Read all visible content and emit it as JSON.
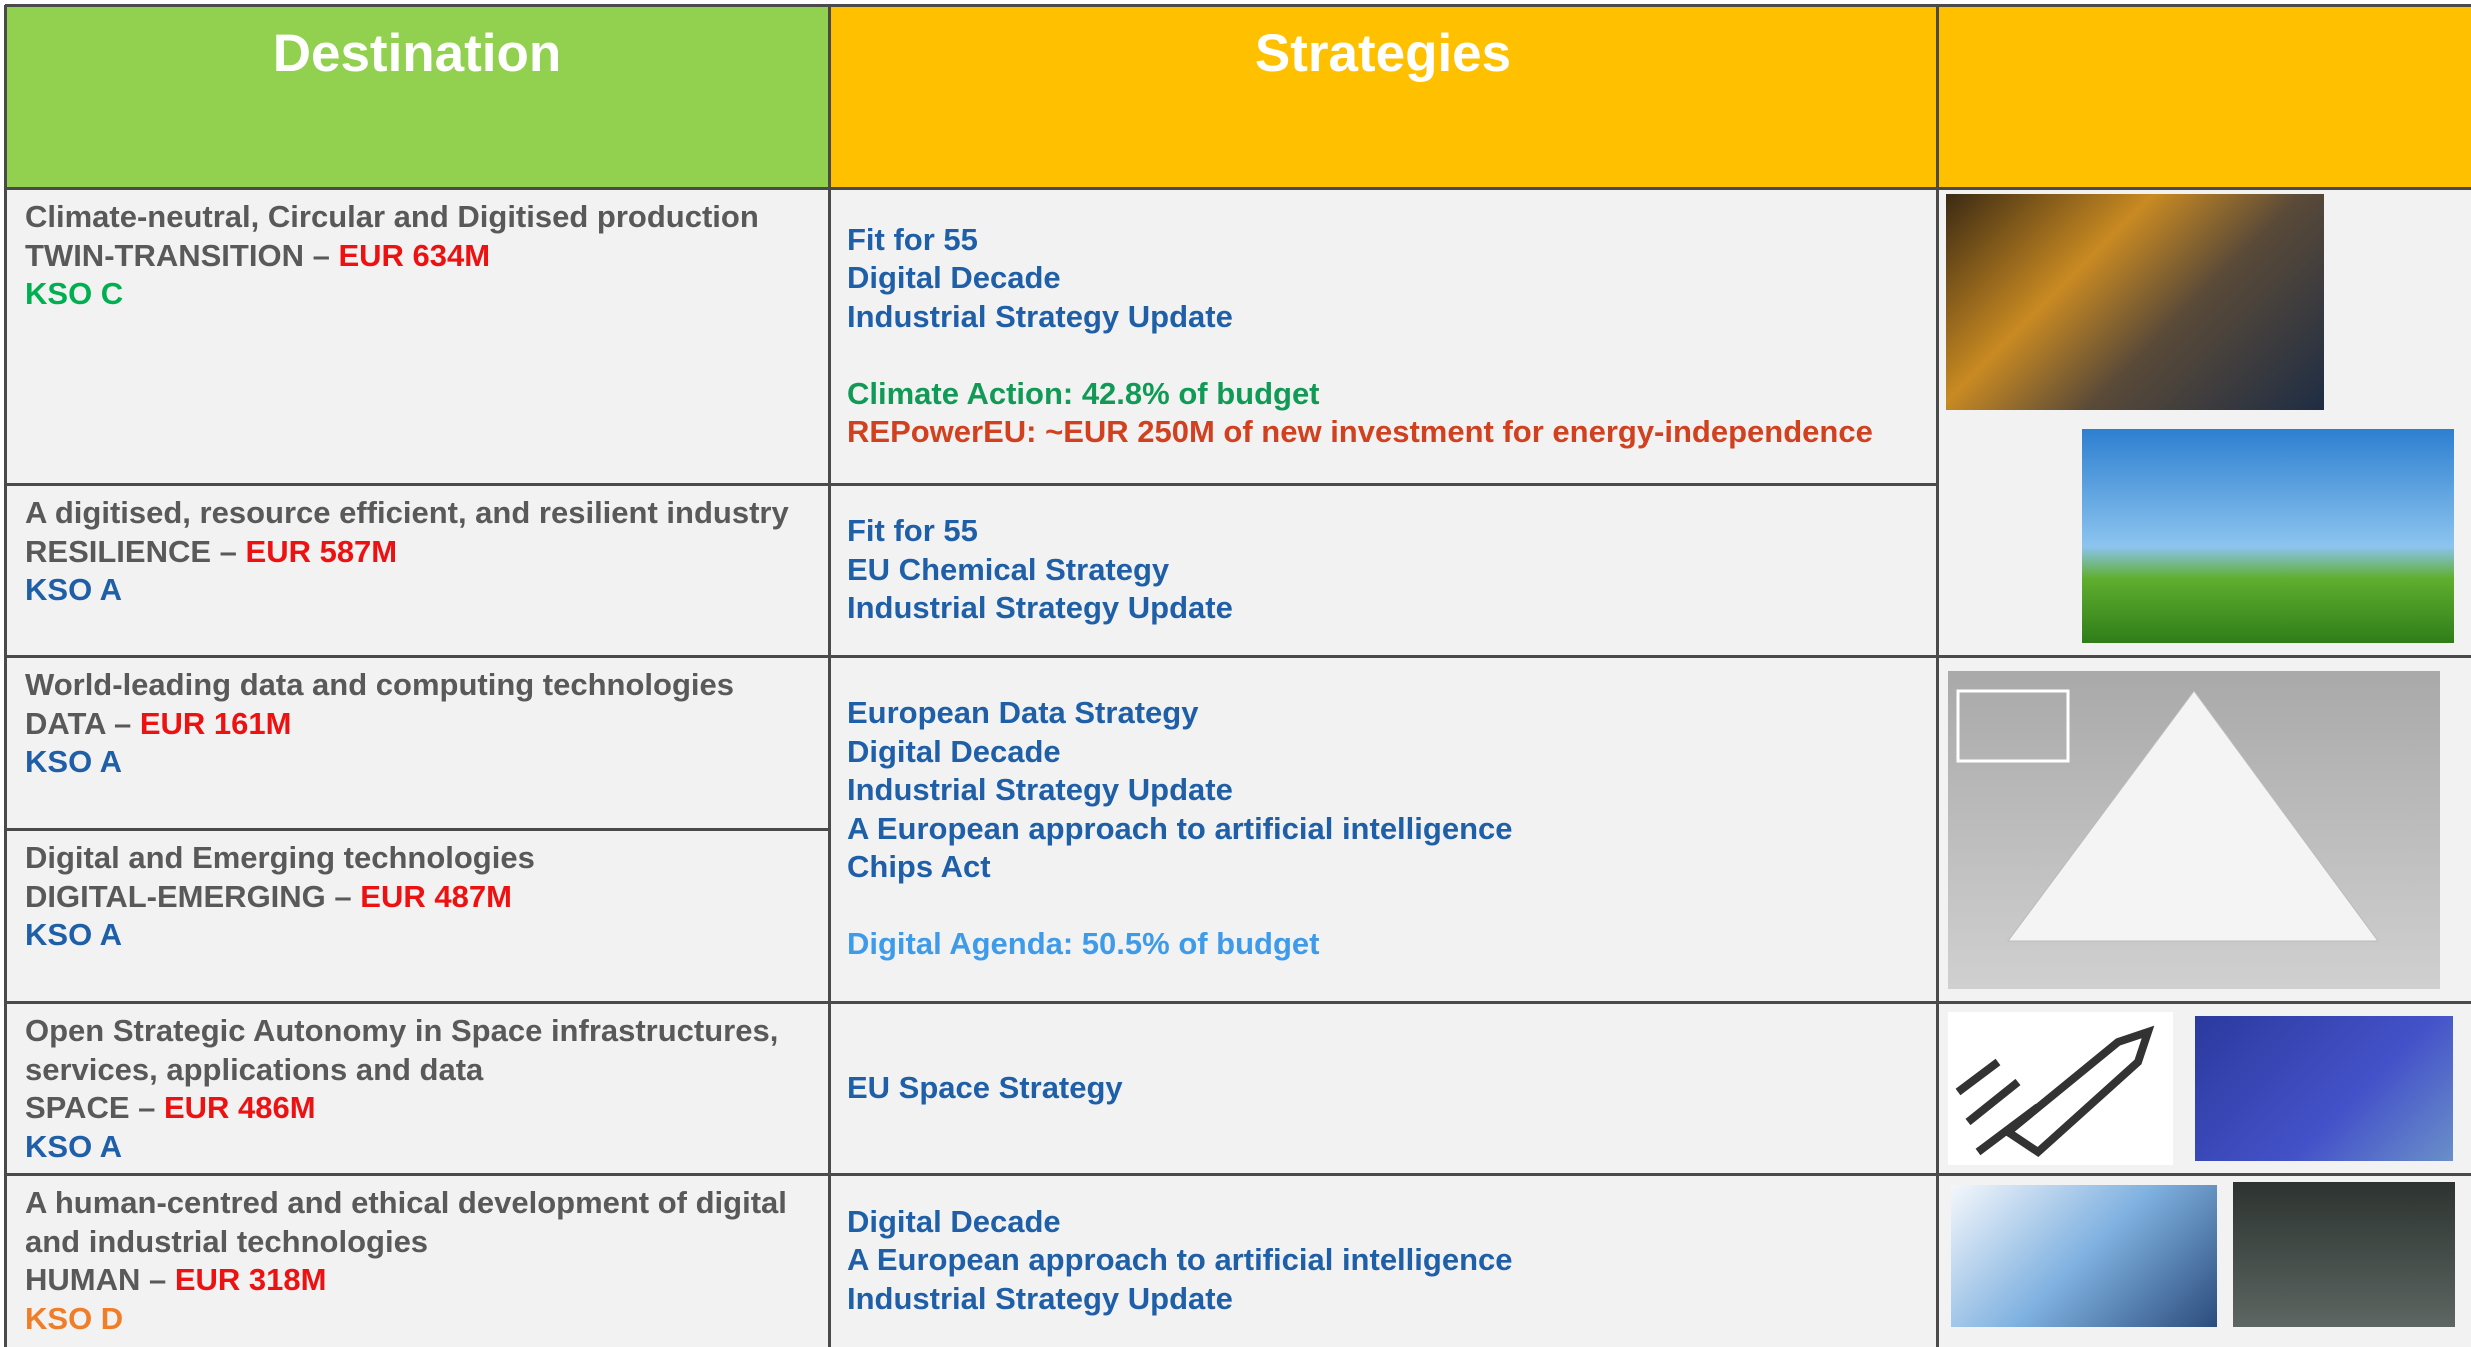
{
  "header": {
    "columns": [
      "Destination",
      "Strategies"
    ]
  },
  "destinations": [
    {
      "title": "Climate-neutral, Circular and Digitised production",
      "label": "TWIN-TRANSITION –",
      "budget": "EUR 634M",
      "kso": "KSO C",
      "kso_color": "#00b050"
    },
    {
      "title": "A digitised, resource efficient, and resilient industry",
      "label": "RESILIENCE –",
      "budget": "EUR 587M",
      "kso": "KSO A",
      "kso_color": "#1f5fa8"
    },
    {
      "title": "World-leading data and computing technologies",
      "label": "DATA –",
      "budget": "EUR 161M",
      "kso": "KSO A",
      "kso_color": "#1f5fa8"
    },
    {
      "title": "Digital and Emerging technologies",
      "label": "DIGITAL-EMERGING –",
      "budget": "EUR 487M",
      "kso": "KSO A",
      "kso_color": "#1f5fa8"
    },
    {
      "title": "Open Strategic Autonomy in Space infrastructures, services, applications and data",
      "label": "SPACE –",
      "budget": "EUR 486M",
      "kso": "KSO A",
      "kso_color": "#1f5fa8"
    },
    {
      "title": "A human-centred and ethical development of digital and industrial technologies",
      "label": "HUMAN –",
      "budget": "EUR 318M",
      "kso": "KSO D",
      "kso_color": "#f07d28"
    }
  ],
  "strategies": [
    {
      "lines": [
        "Fit for 55",
        "Digital Decade",
        "Industrial Strategy Update"
      ],
      "notes": [
        {
          "text": "Climate Action: 42.8% of budget",
          "color": "#119a55"
        },
        {
          "text": "REPowerEU: ~EUR 250M of new investment for energy-independence",
          "color": "#d2411f"
        }
      ]
    },
    {
      "lines": [
        "Fit for 55",
        "EU Chemical Strategy",
        "Industrial Strategy Update"
      ],
      "notes": []
    },
    {
      "lines": [
        "European Data Strategy",
        "Digital Decade",
        "Industrial Strategy Update",
        "A European approach to artificial intelligence",
        "Chips Act"
      ],
      "notes": [
        {
          "text": "Digital Agenda: 50.5% of budget",
          "color": "#3d9be9"
        }
      ]
    },
    {
      "lines": [
        "EU Space Strategy"
      ],
      "notes": []
    },
    {
      "lines": [
        "Digital Decade",
        "A European approach to artificial intelligence",
        "Industrial Strategy Update"
      ],
      "notes": []
    }
  ]
}
